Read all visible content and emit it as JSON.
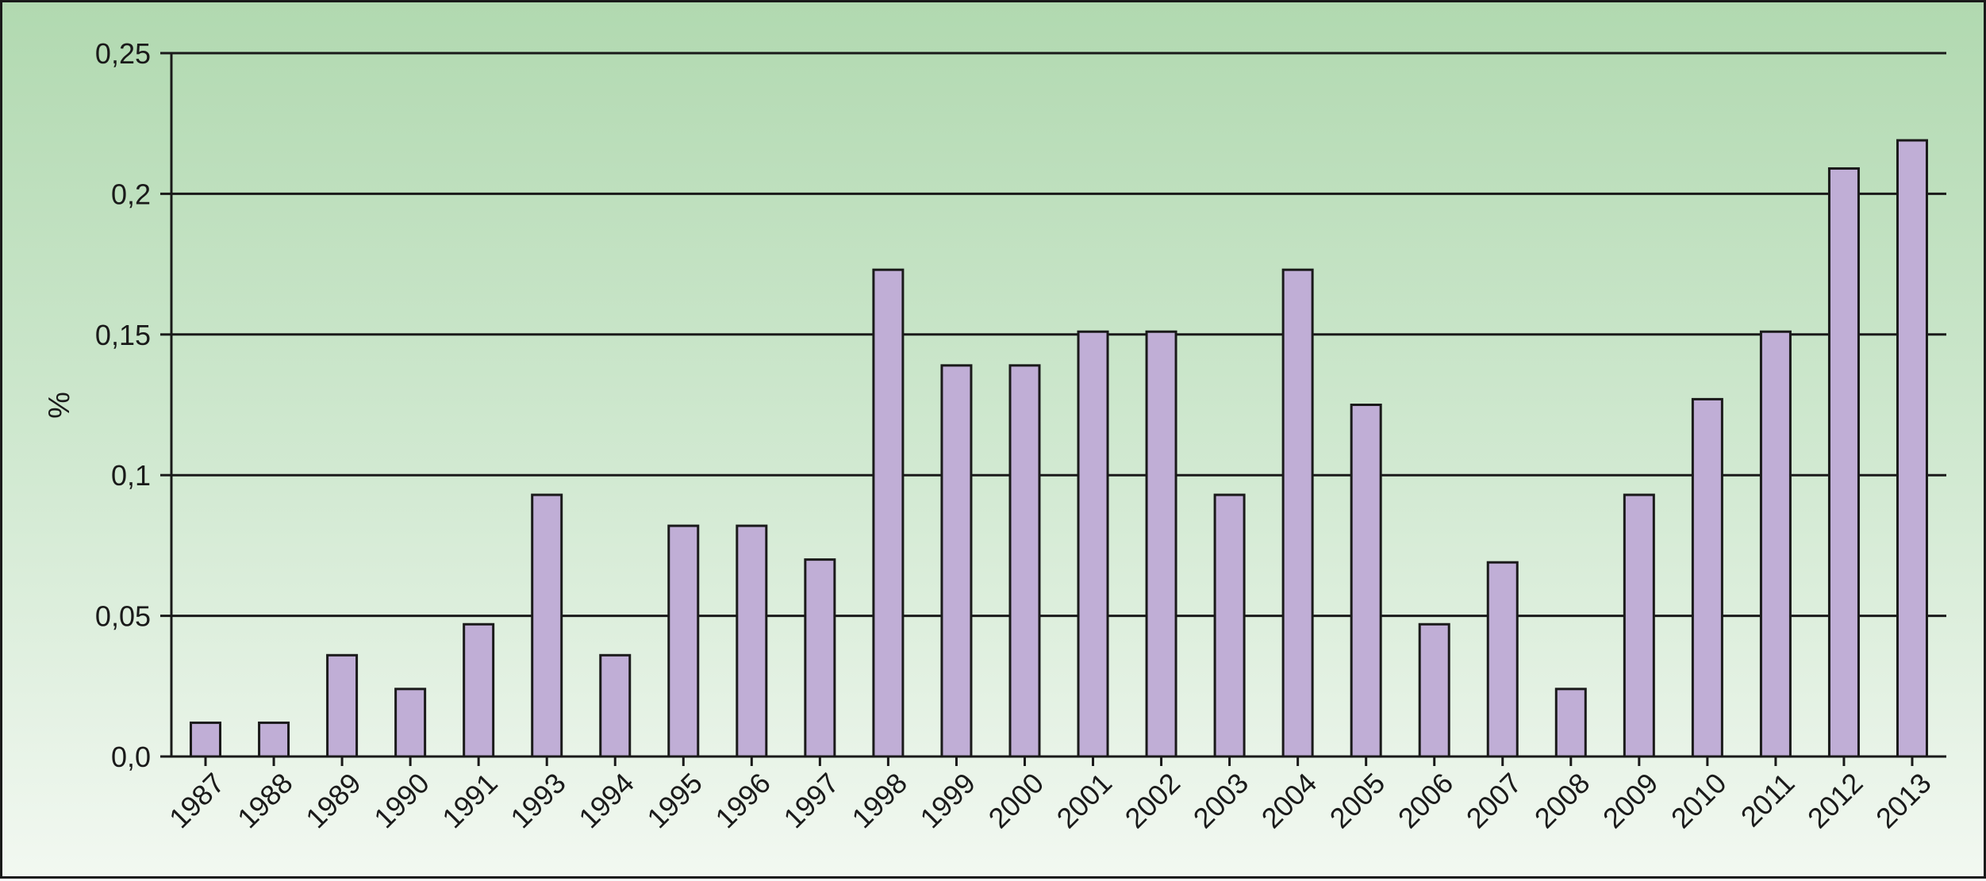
{
  "chart_data": {
    "type": "bar",
    "title": "",
    "xlabel": "",
    "ylabel": "%",
    "ylim": [
      0,
      0.25
    ],
    "yticks": [
      0,
      0.05,
      0.1,
      0.15,
      0.2,
      0.25
    ],
    "ytick_labels": [
      "0,0",
      "0,05",
      "0,1",
      "0,15",
      "0,2",
      "0,25"
    ],
    "grid": true,
    "legend": "none",
    "bar_color": "#c0aed6",
    "categories": [
      "1987",
      "1988",
      "1989",
      "1990",
      "1991",
      "1993",
      "1994",
      "1995",
      "1996",
      "1997",
      "1998",
      "1999",
      "2000",
      "2001",
      "2002",
      "2003",
      "2004",
      "2005",
      "2006",
      "2007",
      "2008",
      "2009",
      "2010",
      "2011",
      "2012",
      "2013"
    ],
    "values": [
      0.012,
      0.012,
      0.036,
      0.024,
      0.047,
      0.093,
      0.036,
      0.082,
      0.082,
      0.07,
      0.173,
      0.139,
      0.139,
      0.151,
      0.151,
      0.093,
      0.173,
      0.125,
      0.047,
      0.069,
      0.024,
      0.093,
      0.127,
      0.151,
      0.209,
      0.219
    ]
  }
}
